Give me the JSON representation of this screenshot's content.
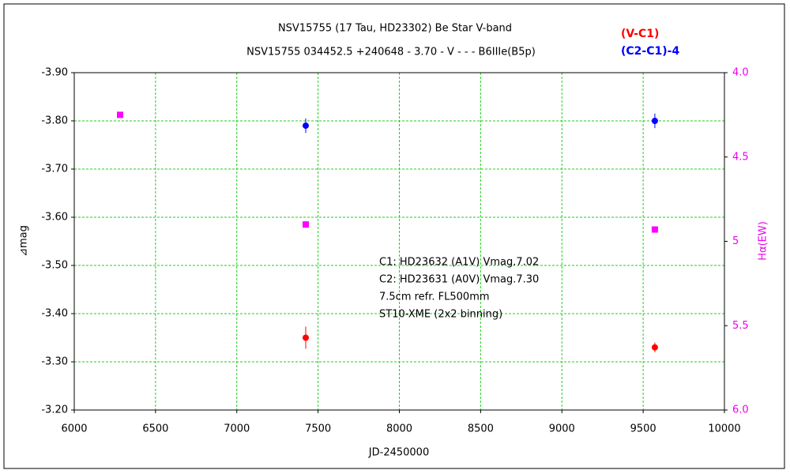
{
  "chart_data": {
    "type": "scatter",
    "title": "NSV15755 (17 Tau, HD23302)   Be Star   V-band",
    "subtitle": "NSV15755 034452.5 +240648 - 3.70 - V - - - B6IIIe(B5p)",
    "xlabel": "JD-2450000",
    "ylabel": "⊿mag",
    "y2label": "Hα(EW)",
    "annotations": [
      "C1: HD23632 (A1V) Vmag.7.02",
      "C2: HD23631 (A0V) Vmag.7.30",
      "7.5cm refr. FL500mm",
      "ST10-XME (2x2 binning)"
    ],
    "xlim": [
      6000,
      10000
    ],
    "xticks": [
      6000,
      6500,
      7000,
      7500,
      8000,
      8500,
      9000,
      9500,
      10000
    ],
    "ylim": [
      -3.2,
      -3.9
    ],
    "yticks": [
      {
        "value": -3.9,
        "label": "-3.90"
      },
      {
        "value": -3.8,
        "label": "-3.80"
      },
      {
        "value": -3.7,
        "label": "-3.70"
      },
      {
        "value": -3.6,
        "label": "-3.60"
      },
      {
        "value": -3.5,
        "label": "-3.50"
      },
      {
        "value": -3.4,
        "label": "-3.40"
      },
      {
        "value": -3.3,
        "label": "-3.30"
      },
      {
        "value": -3.2,
        "label": "-3.20"
      }
    ],
    "y2lim": [
      6,
      4
    ],
    "y2ticks": [
      {
        "value": 4,
        "label": "4.0"
      },
      4.5,
      5,
      5.5,
      {
        "value": 6,
        "label": "6.0"
      }
    ],
    "grid": true,
    "grid_color": "#22cc22",
    "y2_color": "#ee00ee",
    "series": [
      {
        "name": "(V-C1)",
        "color": "#ff0000",
        "x": [
          7424,
          9572
        ],
        "values": [
          -3.35,
          -3.33
        ],
        "errors": [
          0.023,
          0.01
        ]
      },
      {
        "name": "(C2-C1)-4",
        "color": "#0000ff",
        "x": [
          7424,
          9572
        ],
        "values": [
          -3.79,
          -3.8
        ],
        "errors": [
          0.015,
          0.015
        ]
      },
      {
        "color": "#ff00ff",
        "axis": "y2",
        "marker": "square",
        "x": [
          6282,
          7424,
          9572
        ],
        "values": [
          4.25,
          4.9,
          4.93
        ]
      }
    ]
  }
}
